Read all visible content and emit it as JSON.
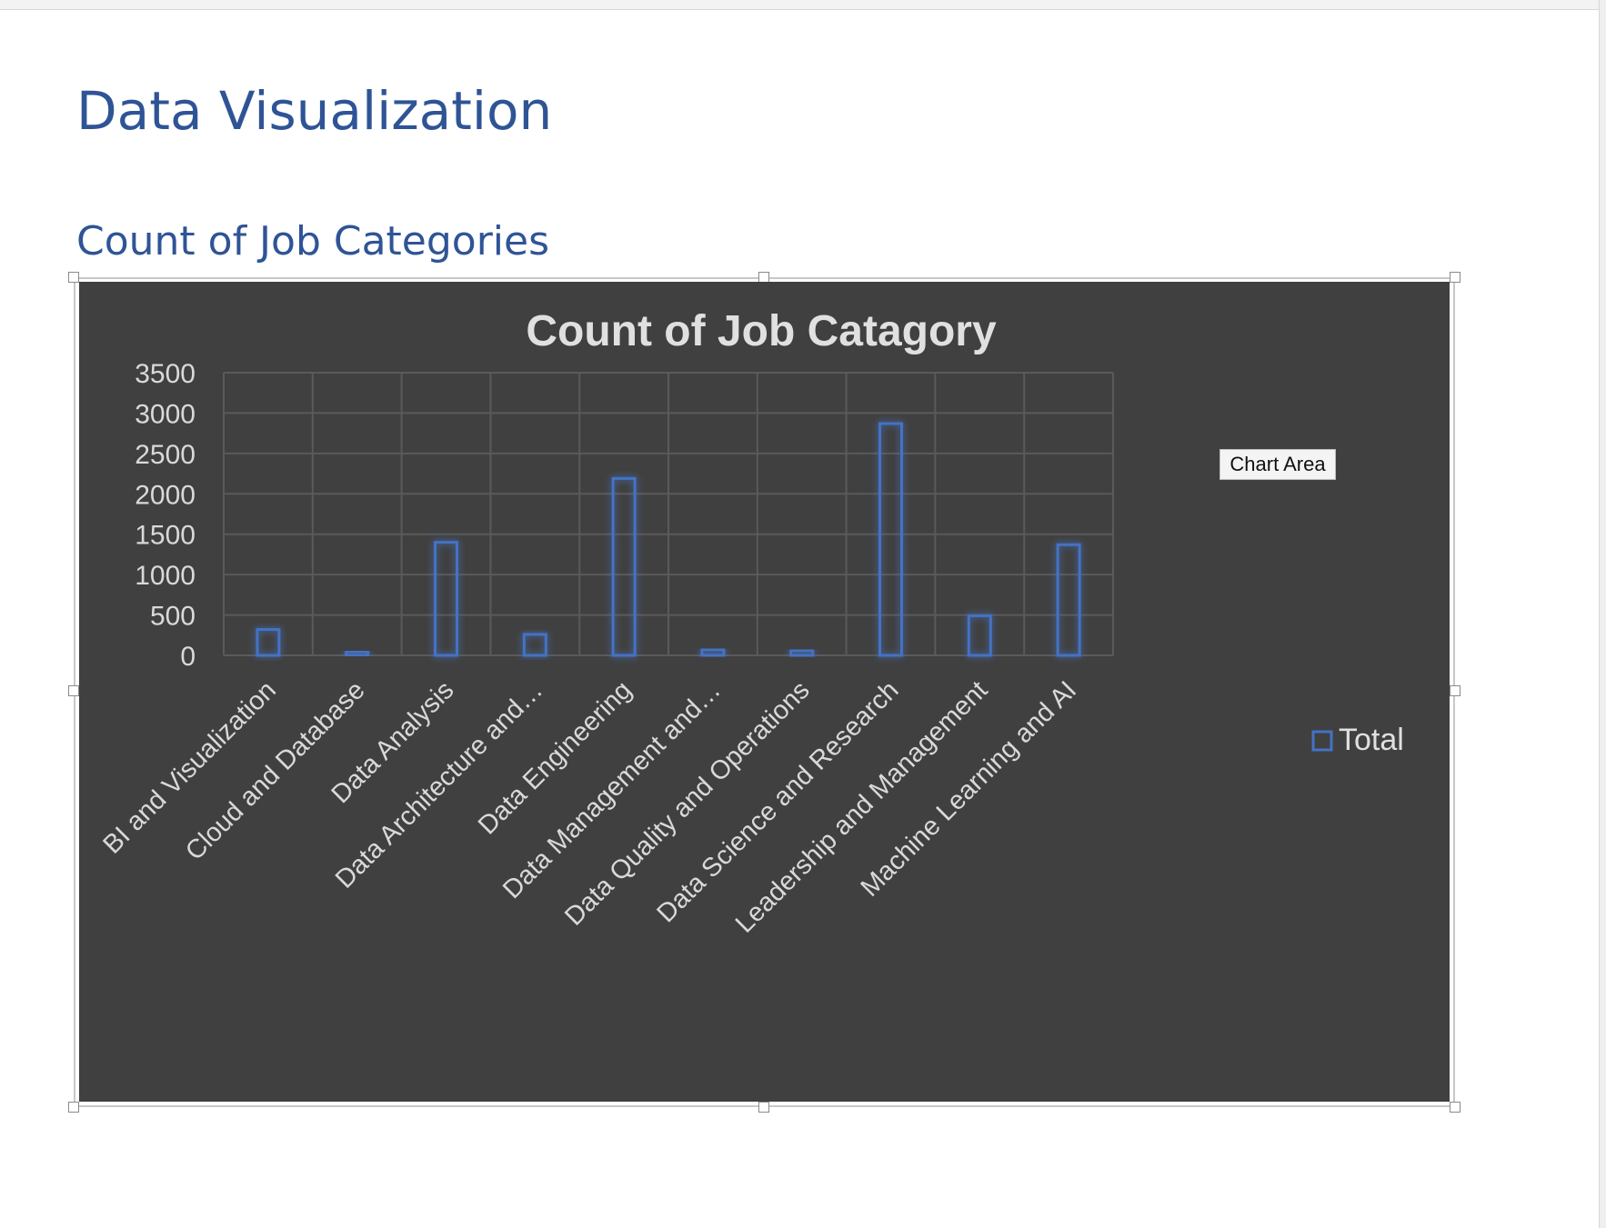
{
  "document": {
    "heading1": "Data Visualization",
    "heading2": "Count of Job Categories"
  },
  "tooltip": "Chart Area",
  "colors": {
    "heading": "#2f5496",
    "chart_background": "#404040",
    "bar_outline": "#4472c4",
    "gridline": "#5a5a5a",
    "text": "#d9d9d9"
  },
  "chart_data": {
    "type": "bar",
    "title": "Count of Job Catagory",
    "xlabel": "",
    "ylabel": "",
    "categories": [
      "BI and Visualization",
      "Cloud and Database",
      "Data Analysis",
      "Data Architecture and…",
      "Data Engineering",
      "Data Management and…",
      "Data Quality and Operations",
      "Data Science and Research",
      "Leadership and Management",
      "Machine Learning and AI"
    ],
    "series": [
      {
        "name": "Total",
        "values": [
          320,
          20,
          1400,
          260,
          2190,
          70,
          60,
          2870,
          490,
          1370
        ]
      }
    ],
    "ylim": [
      0,
      3500
    ],
    "yticks": [
      0,
      500,
      1000,
      1500,
      2000,
      2500,
      3000,
      3500
    ],
    "grid": true,
    "legend": "right"
  }
}
